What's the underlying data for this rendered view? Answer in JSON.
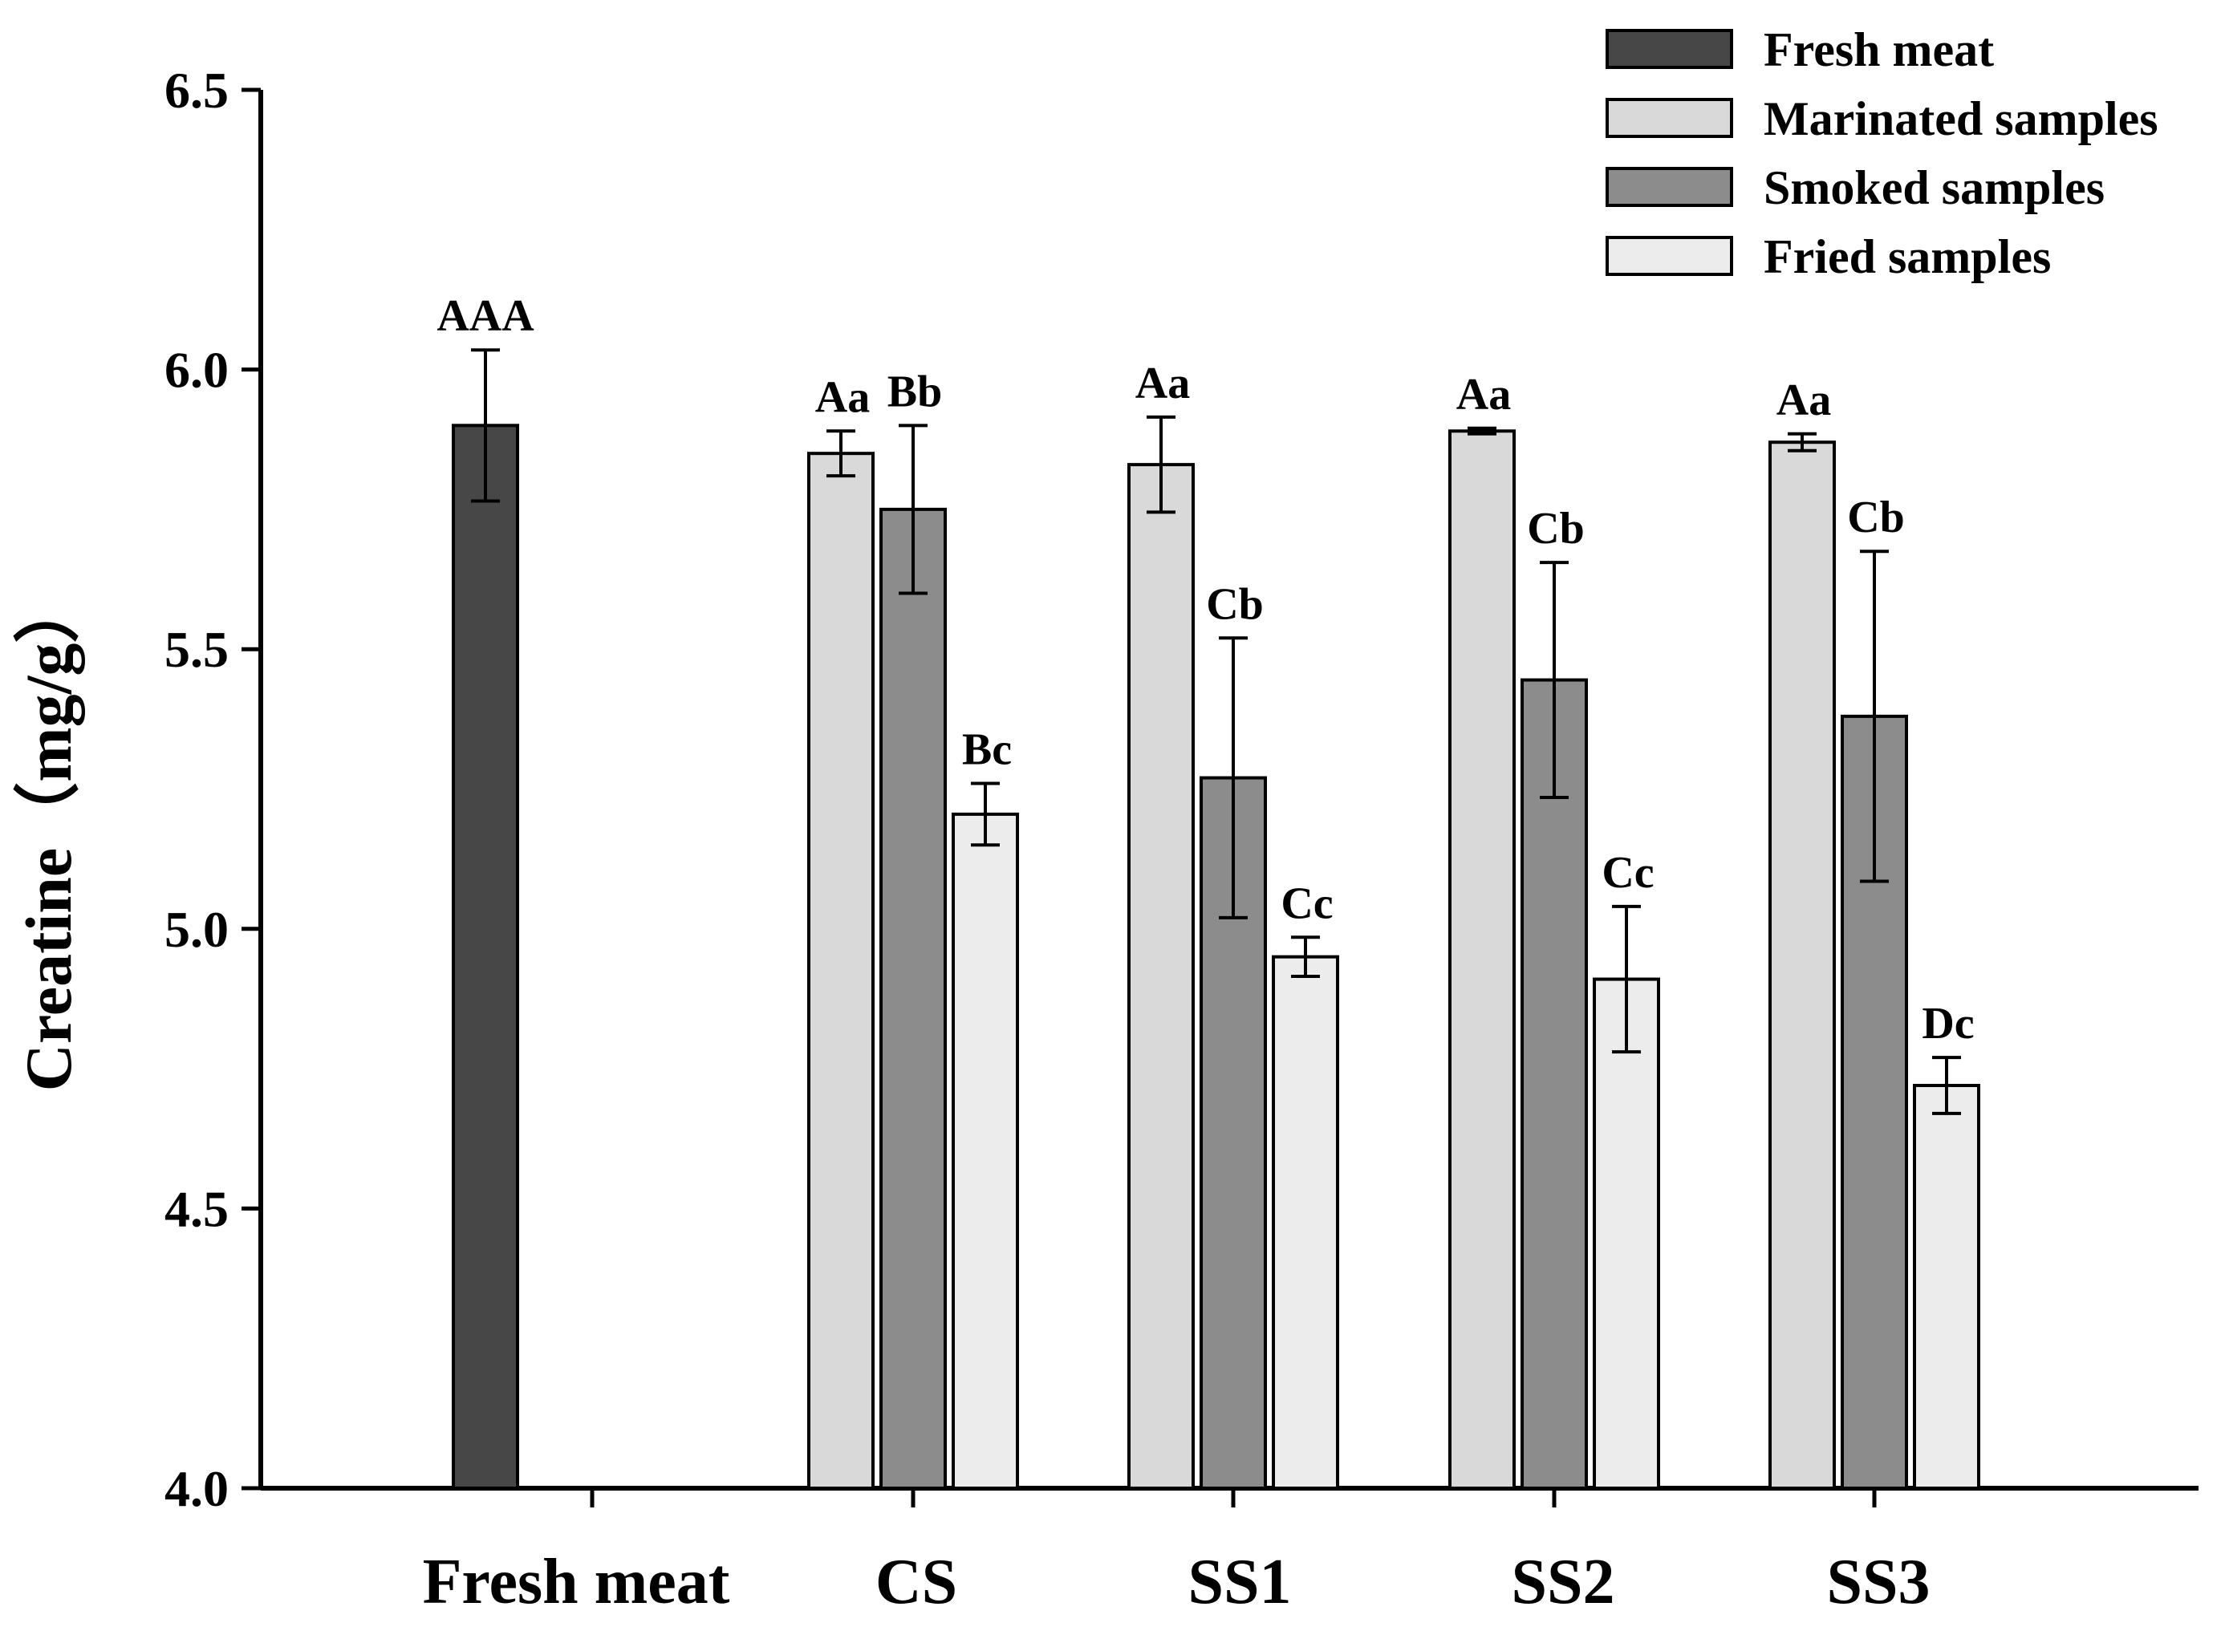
{
  "chart_data": {
    "type": "bar",
    "title": "",
    "xlabel": "",
    "ylabel": "Creatine（mg/g）",
    "ylim": [
      4.0,
      6.5
    ],
    "yticks": [
      "4.0",
      "4.5",
      "5.0",
      "5.5",
      "6.0",
      "6.5"
    ],
    "ytick_values": [
      4.0,
      4.5,
      5.0,
      5.5,
      6.0,
      6.5
    ],
    "legend_position": "top-right",
    "grid": false,
    "categories": [
      "Fresh meat",
      "CS",
      "SS1",
      "SS2",
      "SS3"
    ],
    "series": [
      {
        "name": "Fresh meat",
        "color": "#474747",
        "values": [
          5.9,
          null,
          null,
          null,
          null
        ],
        "errors": [
          0.135,
          null,
          null,
          null,
          null
        ],
        "labels": [
          "AAA",
          null,
          null,
          null,
          null
        ]
      },
      {
        "name": "Marinated samples",
        "color": "#d9d9d9",
        "values": [
          null,
          5.85,
          5.83,
          5.89,
          5.87
        ],
        "errors": [
          null,
          0.04,
          0.085,
          0.005,
          0.015
        ],
        "labels": [
          null,
          "Aa",
          "Aa",
          "Aa",
          "Aa"
        ]
      },
      {
        "name": "Smoked samples",
        "color": "#8c8c8c",
        "values": [
          null,
          5.75,
          5.27,
          5.445,
          5.38
        ],
        "errors": [
          null,
          0.15,
          0.25,
          0.21,
          0.295
        ],
        "labels": [
          null,
          "Bb",
          "Cb",
          "Cb",
          "Cb"
        ]
      },
      {
        "name": "Fried samples",
        "color": "#ececec",
        "values": [
          null,
          5.205,
          4.95,
          4.91,
          4.72
        ],
        "errors": [
          null,
          0.055,
          0.035,
          0.13,
          0.05
        ],
        "labels": [
          null,
          "Bc",
          "Cc",
          "Cc",
          "Dc"
        ]
      }
    ]
  }
}
